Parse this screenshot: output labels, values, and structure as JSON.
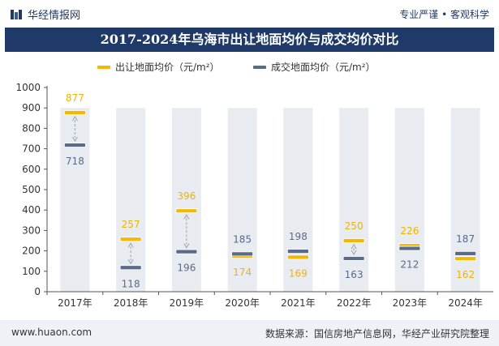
{
  "header": {
    "brand": "华经情报网",
    "tagline": "专业严谨 • 客观科学"
  },
  "colors": {
    "title_bg": "#1f3a68",
    "listing_price": "#f5b800",
    "deal_price": "#5a6a8a",
    "column_bg": "#e8ebf0",
    "listing_label": "#f0b400",
    "deal_label": "#5a6a8a"
  },
  "footer": {
    "url": "www.huaon.com",
    "source": "数据来源：国信房地产信息网，华经产业研究院整理"
  },
  "chart_data": {
    "type": "line",
    "title": "2017-2024年乌海市出让地面均价与成交均价对比",
    "categories": [
      "2017年",
      "2018年",
      "2019年",
      "2020年",
      "2021年",
      "2022年",
      "2023年",
      "2024年"
    ],
    "series": [
      {
        "name": "出让地面均价（元/m²）",
        "values": [
          877,
          257,
          396,
          174,
          169,
          250,
          226,
          162
        ]
      },
      {
        "name": "成交地面均价（元/m²）",
        "values": [
          718,
          118,
          196,
          185,
          198,
          163,
          212,
          187
        ]
      }
    ],
    "ylim": [
      0,
      1000
    ],
    "yticks": [
      "0",
      "100",
      "200",
      "300",
      "400",
      "500",
      "600",
      "700",
      "800",
      "900",
      "1000"
    ],
    "legend": "top-center",
    "grid": false
  }
}
